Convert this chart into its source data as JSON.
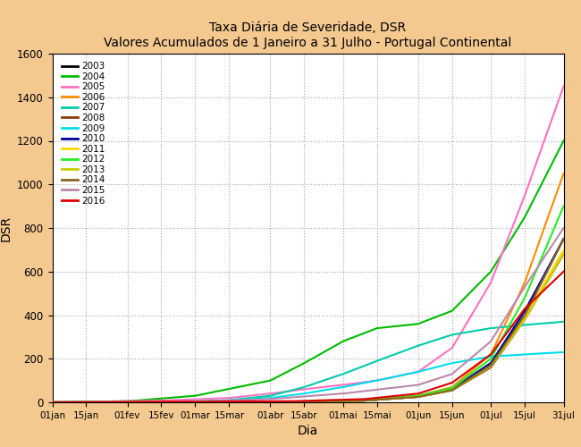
{
  "title_line1": "Taxa Diária de Severidade, DSR",
  "title_line2": "Valores Acumulados de 1 Janeiro a 31 Julho - Portugal Continental",
  "xlabel": "Dia",
  "ylabel": "DSR",
  "ylim": [
    0,
    1600
  ],
  "yticks": [
    0,
    200,
    400,
    600,
    800,
    1000,
    1200,
    1400,
    1600
  ],
  "background_color": "#F4C990",
  "years": [
    2003,
    2004,
    2005,
    2006,
    2007,
    2008,
    2009,
    2010,
    2011,
    2012,
    2013,
    2014,
    2015,
    2016
  ],
  "colors": {
    "2003": "#000000",
    "2004": "#00BB00",
    "2005": "#FF70C0",
    "2006": "#FF8C00",
    "2007": "#00CCAA",
    "2008": "#8B3A0A",
    "2009": "#00DDEE",
    "2010": "#000099",
    "2011": "#FFD700",
    "2012": "#22EE22",
    "2013": "#CCCC00",
    "2014": "#886622",
    "2015": "#BB88AA",
    "2016": "#DD0000"
  },
  "x_tick_labels": [
    "01jan",
    "15jan",
    "01fev",
    "15fev",
    "01mar",
    "15mar",
    "01abr",
    "15abr",
    "01mai",
    "15mai",
    "01jun",
    "15jun",
    "01jul",
    "15jul",
    "31jul"
  ],
  "x_tick_days": [
    1,
    15,
    32,
    46,
    60,
    74,
    91,
    105,
    121,
    135,
    152,
    166,
    182,
    196,
    212
  ],
  "curves": {
    "2003": {
      "ctrl_x": [
        0,
        100,
        130,
        152,
        166,
        182,
        196,
        212
      ],
      "ctrl_y": [
        0,
        2,
        8,
        25,
        60,
        180,
        400,
        750
      ]
    },
    "2004": {
      "ctrl_x": [
        0,
        32,
        60,
        91,
        105,
        121,
        135,
        152,
        166,
        182,
        196,
        212
      ],
      "ctrl_y": [
        0,
        5,
        30,
        100,
        180,
        280,
        340,
        360,
        420,
        600,
        850,
        1200
      ]
    },
    "2005": {
      "ctrl_x": [
        0,
        15,
        46,
        74,
        91,
        105,
        121,
        135,
        152,
        166,
        182,
        196,
        212
      ],
      "ctrl_y": [
        0,
        2,
        8,
        20,
        40,
        60,
        80,
        100,
        140,
        250,
        550,
        950,
        1450
      ]
    },
    "2006": {
      "ctrl_x": [
        0,
        100,
        130,
        152,
        166,
        182,
        196,
        212
      ],
      "ctrl_y": [
        0,
        2,
        10,
        30,
        70,
        220,
        550,
        1050
      ]
    },
    "2007": {
      "ctrl_x": [
        0,
        60,
        74,
        91,
        105,
        121,
        135,
        152,
        166,
        182,
        196,
        212
      ],
      "ctrl_y": [
        0,
        3,
        10,
        30,
        70,
        130,
        190,
        260,
        310,
        340,
        355,
        370
      ]
    },
    "2008": {
      "ctrl_x": [
        0,
        100,
        130,
        152,
        166,
        182,
        196,
        212
      ],
      "ctrl_y": [
        0,
        2,
        8,
        25,
        55,
        160,
        380,
        680
      ]
    },
    "2009": {
      "ctrl_x": [
        0,
        46,
        74,
        91,
        105,
        121,
        135,
        152,
        166,
        182,
        196,
        212
      ],
      "ctrl_y": [
        0,
        2,
        8,
        20,
        40,
        70,
        100,
        140,
        180,
        210,
        220,
        230
      ]
    },
    "2010": {
      "ctrl_x": [
        0,
        100,
        130,
        152,
        166,
        182,
        196,
        212
      ],
      "ctrl_y": [
        0,
        2,
        8,
        25,
        60,
        180,
        420,
        750
      ]
    },
    "2011": {
      "ctrl_x": [
        0,
        100,
        130,
        152,
        166,
        182,
        196,
        212
      ],
      "ctrl_y": [
        0,
        2,
        8,
        25,
        55,
        170,
        390,
        700
      ]
    },
    "2012": {
      "ctrl_x": [
        0,
        100,
        130,
        152,
        166,
        182,
        196,
        212
      ],
      "ctrl_y": [
        0,
        2,
        10,
        30,
        65,
        200,
        480,
        900
      ]
    },
    "2013": {
      "ctrl_x": [
        0,
        100,
        130,
        152,
        166,
        182,
        196,
        212
      ],
      "ctrl_y": [
        0,
        2,
        8,
        25,
        55,
        165,
        380,
        680
      ]
    },
    "2014": {
      "ctrl_x": [
        0,
        100,
        130,
        152,
        166,
        182,
        196,
        212
      ],
      "ctrl_y": [
        0,
        2,
        8,
        25,
        55,
        170,
        400,
        750
      ]
    },
    "2015": {
      "ctrl_x": [
        0,
        60,
        91,
        121,
        152,
        166,
        182,
        196,
        212
      ],
      "ctrl_y": [
        0,
        3,
        15,
        40,
        80,
        130,
        280,
        530,
        800
      ]
    },
    "2016": {
      "ctrl_x": [
        0,
        100,
        130,
        152,
        166,
        182,
        196,
        212
      ],
      "ctrl_y": [
        0,
        5,
        15,
        40,
        90,
        220,
        430,
        600
      ]
    }
  }
}
